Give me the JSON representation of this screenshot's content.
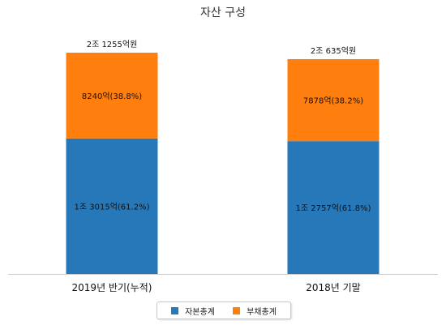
{
  "chart_data": {
    "type": "bar",
    "stacked": true,
    "title": "자산 구성",
    "categories": [
      "2019년 반기(누적)",
      "2018년 기말"
    ],
    "series": [
      {
        "name": "자본총계",
        "color": "#2778b9",
        "values": [
          13015,
          12757
        ],
        "labels": [
          "1조 3015억(61.2%)",
          "1조 2757억(61.8%)"
        ]
      },
      {
        "name": "부채총계",
        "color": "#ff7f0e",
        "values": [
          8240,
          7878
        ],
        "labels": [
          "8240억(38.8%)",
          "7878억(38.2%)"
        ]
      }
    ],
    "totals": [
      "2조 1255억원",
      "2조 635억원"
    ],
    "total_values": [
      21255,
      20635
    ],
    "legend": "bottom",
    "grid": false
  }
}
